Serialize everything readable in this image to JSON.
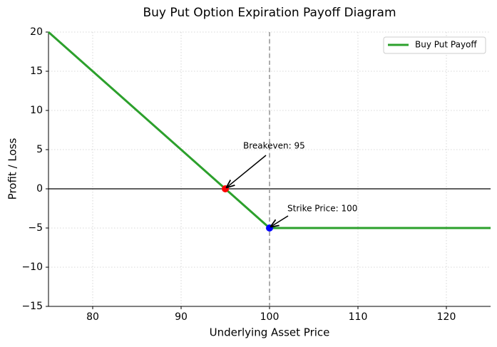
{
  "chart_data": {
    "type": "line",
    "title": "Buy Put Option Expiration Payoff Diagram",
    "xlabel": "Underlying Asset Price",
    "ylabel": "Profit / Loss",
    "x": [
      75,
      100,
      125
    ],
    "series": [
      {
        "name": "Buy Put Payoff",
        "color": "#2ca02c",
        "values": [
          20,
          -5,
          -5
        ]
      }
    ],
    "markers": [
      {
        "x": 95,
        "y": 0,
        "color": "#ff0000"
      },
      {
        "x": 100,
        "y": -5,
        "color": "#0000ff"
      }
    ],
    "annotations": [
      {
        "text": "Breakeven: 95",
        "x": 95,
        "y": 0
      },
      {
        "text": "Strike Price: 100",
        "x": 100,
        "y": -5
      }
    ],
    "vline": 100,
    "hline": 0,
    "xlim": [
      75,
      125
    ],
    "ylim": [
      -15,
      20
    ],
    "xticks": [
      80,
      90,
      100,
      110,
      120
    ],
    "yticks": [
      {
        "value": -15,
        "label": "−15"
      },
      {
        "value": -10,
        "label": "−10"
      },
      {
        "value": -5,
        "label": "−5"
      },
      0,
      5,
      10,
      15,
      20
    ],
    "grid": true,
    "legend": "upper right"
  }
}
